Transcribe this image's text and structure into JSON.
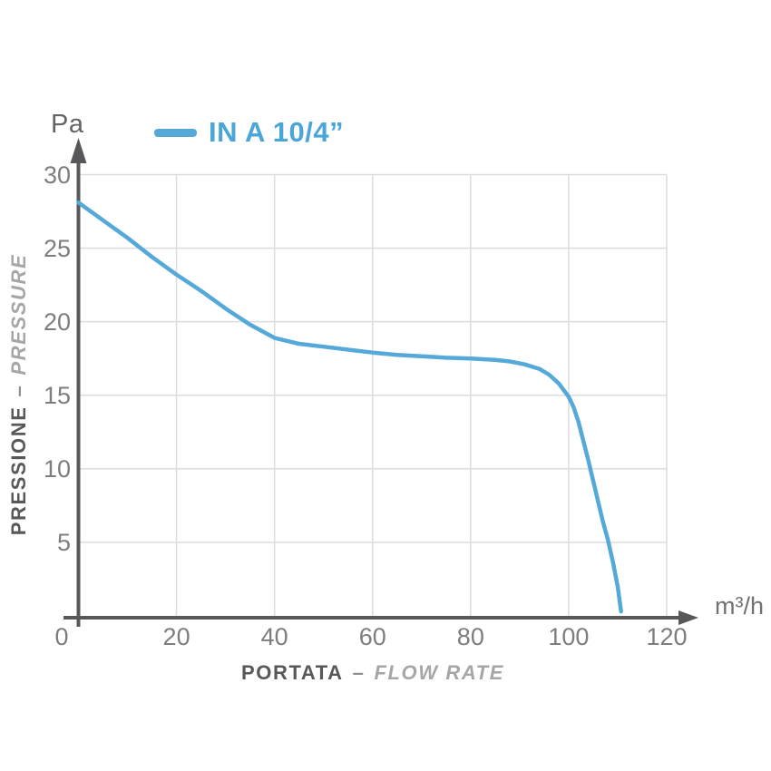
{
  "labels": {
    "y_unit": "Pa",
    "x_unit": "m³/h"
  },
  "legend": {
    "label": "IN A 10/4”"
  },
  "axis_titles": {
    "x": {
      "primary": "PORTATA",
      "separator": "–",
      "secondary": "FLOW RATE"
    },
    "y": {
      "primary": "PRESSIONE",
      "separator": "–",
      "secondary": "PRESSURE"
    }
  },
  "colors": {
    "accent": "#54a9d9",
    "legend_text": "#4aa5d8",
    "axis": "#58585a",
    "grid": "#dcdcdc",
    "tick_text": "#7d7d7f",
    "title_dark": "#58585a",
    "title_light": "#a6a6a8",
    "unit_text": "#717174"
  },
  "chart_data": {
    "type": "line",
    "title": "",
    "xlabel": "PORTATA – FLOW RATE",
    "ylabel": "PRESSIONE – PRESSURE",
    "x_unit": "m³/h",
    "y_unit": "Pa",
    "xlim": [
      0,
      120
    ],
    "ylim": [
      0,
      30
    ],
    "x_ticks": [
      0,
      20,
      40,
      60,
      80,
      100,
      120
    ],
    "y_ticks": [
      5,
      10,
      15,
      20,
      25,
      30
    ],
    "grid": true,
    "legend_position": "top-left",
    "series": [
      {
        "name": "IN A 10/4”",
        "color": "#54a9d9",
        "points": [
          [
            0,
            28.1
          ],
          [
            5,
            26.9
          ],
          [
            10,
            25.7
          ],
          [
            15,
            24.4
          ],
          [
            20,
            23.2
          ],
          [
            25,
            22.1
          ],
          [
            30,
            20.9
          ],
          [
            35,
            19.8
          ],
          [
            40,
            18.9
          ],
          [
            45,
            18.5
          ],
          [
            50,
            18.3
          ],
          [
            55,
            18.1
          ],
          [
            60,
            17.9
          ],
          [
            65,
            17.75
          ],
          [
            70,
            17.65
          ],
          [
            75,
            17.55
          ],
          [
            80,
            17.5
          ],
          [
            85,
            17.4
          ],
          [
            88,
            17.3
          ],
          [
            91,
            17.1
          ],
          [
            94,
            16.8
          ],
          [
            96,
            16.4
          ],
          [
            98,
            15.8
          ],
          [
            100,
            14.9
          ],
          [
            101,
            14.2
          ],
          [
            102,
            13.2
          ],
          [
            103,
            11.9
          ],
          [
            104,
            10.6
          ],
          [
            105,
            9.2
          ],
          [
            106,
            7.8
          ],
          [
            107,
            6.4
          ],
          [
            108,
            5.2
          ],
          [
            109,
            3.7
          ],
          [
            110,
            2.0
          ],
          [
            110.7,
            0.3
          ]
        ]
      }
    ]
  }
}
